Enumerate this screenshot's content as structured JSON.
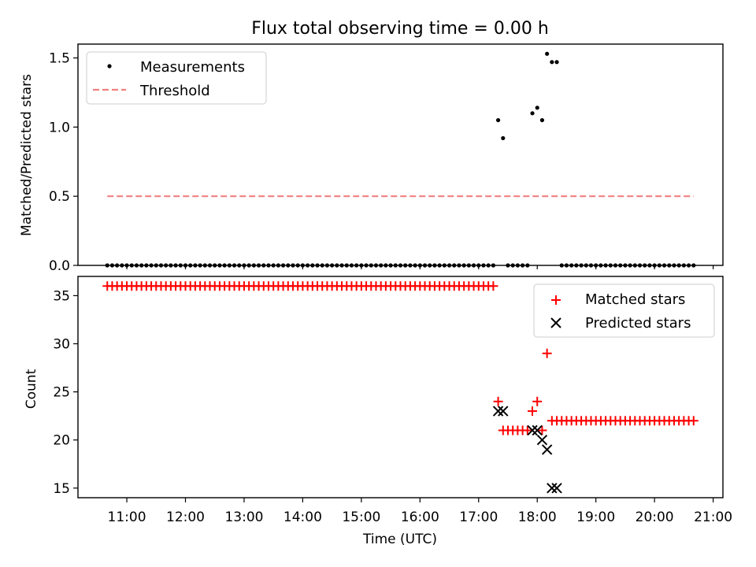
{
  "chart_data": [
    {
      "type": "scatter",
      "title": "Flux total observing time = 0.00 h",
      "xlabel": "",
      "ylabel": "Matched/Predicted stars",
      "ylim": [
        0,
        1.6
      ],
      "yticks": [
        "0.0",
        "0.5",
        "1.0",
        "1.5"
      ],
      "legend": {
        "position": "top-left",
        "entries": [
          "Measurements",
          "Threshold"
        ]
      },
      "series": [
        {
          "name": "Measurements",
          "color": "#000000",
          "marker": "dot",
          "x_range": [
            "10:40",
            "20:40"
          ],
          "interval_minutes": 5,
          "nonzero_points": [
            {
              "x": "17:20",
              "y": 1.05
            },
            {
              "x": "17:25",
              "y": 0.92
            },
            {
              "x": "17:55",
              "y": 1.1
            },
            {
              "x": "18:00",
              "y": 1.14
            },
            {
              "x": "18:05",
              "y": 1.05
            },
            {
              "x": "18:10",
              "y": 1.53
            },
            {
              "x": "18:15",
              "y": 1.47
            },
            {
              "x": "18:20",
              "y": 1.47
            }
          ],
          "gaps": [
            [
              "17:15",
              "17:30"
            ],
            [
              "17:50",
              "18:25"
            ]
          ]
        },
        {
          "name": "Threshold",
          "color": "#f08080",
          "style": "dashed",
          "x_range": [
            "10:40",
            "20:40"
          ],
          "y": 0.5
        }
      ]
    },
    {
      "type": "scatter",
      "title": "",
      "xlabel": "Time (UTC)",
      "ylabel": "Count",
      "ylim": [
        14,
        37
      ],
      "yticks": [
        "15",
        "20",
        "25",
        "30",
        "35"
      ],
      "xlim": [
        "10:10",
        "21:10"
      ],
      "xticks": [
        "11:00",
        "12:00",
        "13:00",
        "14:00",
        "15:00",
        "16:00",
        "17:00",
        "18:00",
        "19:00",
        "20:00",
        "21:00"
      ],
      "legend": {
        "position": "top-right",
        "entries": [
          "Matched stars",
          "Predicted stars"
        ]
      },
      "series": [
        {
          "name": "Matched stars",
          "color": "#ff0000",
          "marker": "plus",
          "points": [
            {
              "from": "10:40",
              "to": "17:15",
              "y": 36
            },
            {
              "x": "17:20",
              "y": 24
            },
            {
              "x": "17:25",
              "y": 21
            },
            {
              "x": "17:30",
              "y": 21
            },
            {
              "x": "17:35",
              "y": 21
            },
            {
              "x": "17:40",
              "y": 21
            },
            {
              "x": "17:45",
              "y": 21
            },
            {
              "x": "17:50",
              "y": 21
            },
            {
              "x": "17:55",
              "y": 23
            },
            {
              "x": "18:00",
              "y": 24
            },
            {
              "x": "18:05",
              "y": 21
            },
            {
              "x": "18:10",
              "y": 29
            },
            {
              "from": "18:15",
              "to": "20:40",
              "y": 22
            }
          ]
        },
        {
          "name": "Predicted stars",
          "color": "#000000",
          "marker": "x",
          "points": [
            {
              "x": "17:20",
              "y": 23
            },
            {
              "x": "17:25",
              "y": 23
            },
            {
              "x": "17:55",
              "y": 21
            },
            {
              "x": "18:00",
              "y": 21
            },
            {
              "x": "18:05",
              "y": 20
            },
            {
              "x": "18:10",
              "y": 19
            },
            {
              "x": "18:15",
              "y": 15
            },
            {
              "x": "18:20",
              "y": 15
            }
          ]
        }
      ]
    }
  ]
}
